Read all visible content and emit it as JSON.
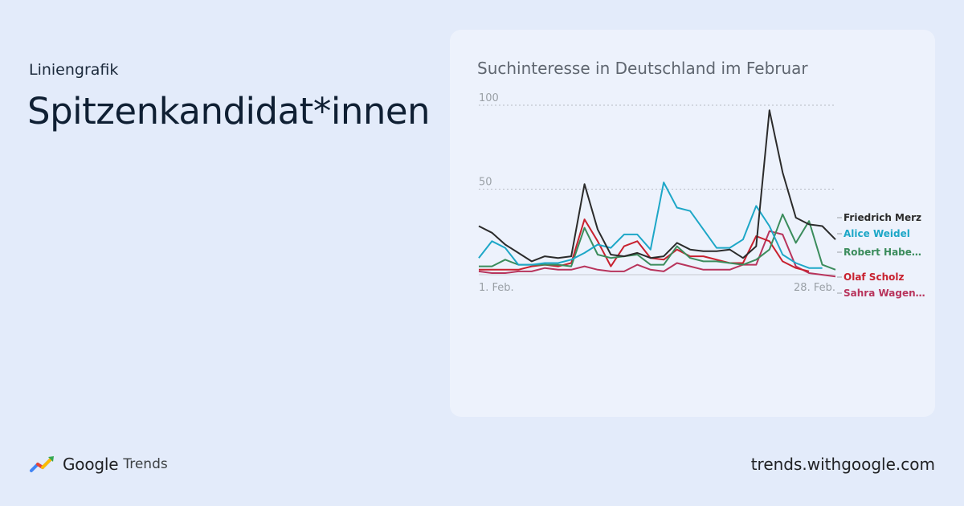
{
  "eyebrow": "Liniengrafik",
  "headline": "Spitzenkandidat*innen",
  "footer": {
    "brand": "Google",
    "product": "Trends",
    "url": "trends.withgoogle.com"
  },
  "chart_data": {
    "type": "line",
    "title": "Suchinteresse in Deutschland im Februar",
    "ylim": [
      0,
      100
    ],
    "ytick_labels": [
      "50",
      "100"
    ],
    "x_labels": {
      "start": "1. Feb.",
      "end": "28. Feb."
    },
    "x": [
      1,
      2,
      3,
      4,
      5,
      6,
      7,
      8,
      9,
      10,
      11,
      12,
      13,
      14,
      15,
      16,
      17,
      18,
      19,
      20,
      21,
      22,
      23,
      24,
      25,
      26,
      27,
      28
    ],
    "series": [
      {
        "name": "Friedrich Merz",
        "color": "#2b2b2b",
        "values": [
          28,
          24,
          17,
          12,
          7,
          10,
          9,
          10,
          53,
          26,
          11,
          10,
          12,
          9,
          10,
          18,
          14,
          13,
          13,
          14,
          9,
          16,
          97,
          60,
          33,
          29,
          28,
          20
        ]
      },
      {
        "name": "Alice Weidel",
        "color": "#1da7c7",
        "values": [
          9,
          19,
          15,
          5,
          5,
          6,
          6,
          8,
          12,
          17,
          15,
          23,
          23,
          14,
          54,
          39,
          37,
          26,
          15,
          15,
          20,
          40,
          28,
          11,
          6,
          3,
          3,
          null
        ]
      },
      {
        "name": "Robert Habe…",
        "color": "#3b8c5c",
        "values": [
          4,
          4,
          8,
          5,
          5,
          5,
          5,
          4,
          27,
          11,
          9,
          10,
          11,
          5,
          5,
          16,
          9,
          7,
          7,
          6,
          5,
          8,
          14,
          35,
          18,
          31,
          5,
          2
        ]
      },
      {
        "name": "Olaf Scholz",
        "color": "#c8212f",
        "values": [
          2,
          2,
          2,
          2,
          4,
          5,
          4,
          6,
          32,
          19,
          4,
          16,
          19,
          9,
          8,
          14,
          10,
          10,
          8,
          6,
          6,
          22,
          19,
          7,
          3,
          1,
          null,
          null
        ]
      },
      {
        "name": "Sahra Wagen…",
        "color": "#b8345c",
        "values": [
          1,
          0,
          0,
          1,
          1,
          3,
          2,
          2,
          4,
          2,
          1,
          1,
          5,
          2,
          1,
          6,
          4,
          2,
          2,
          2,
          5,
          5,
          25,
          23,
          4,
          0,
          -1,
          -2
        ]
      }
    ]
  }
}
